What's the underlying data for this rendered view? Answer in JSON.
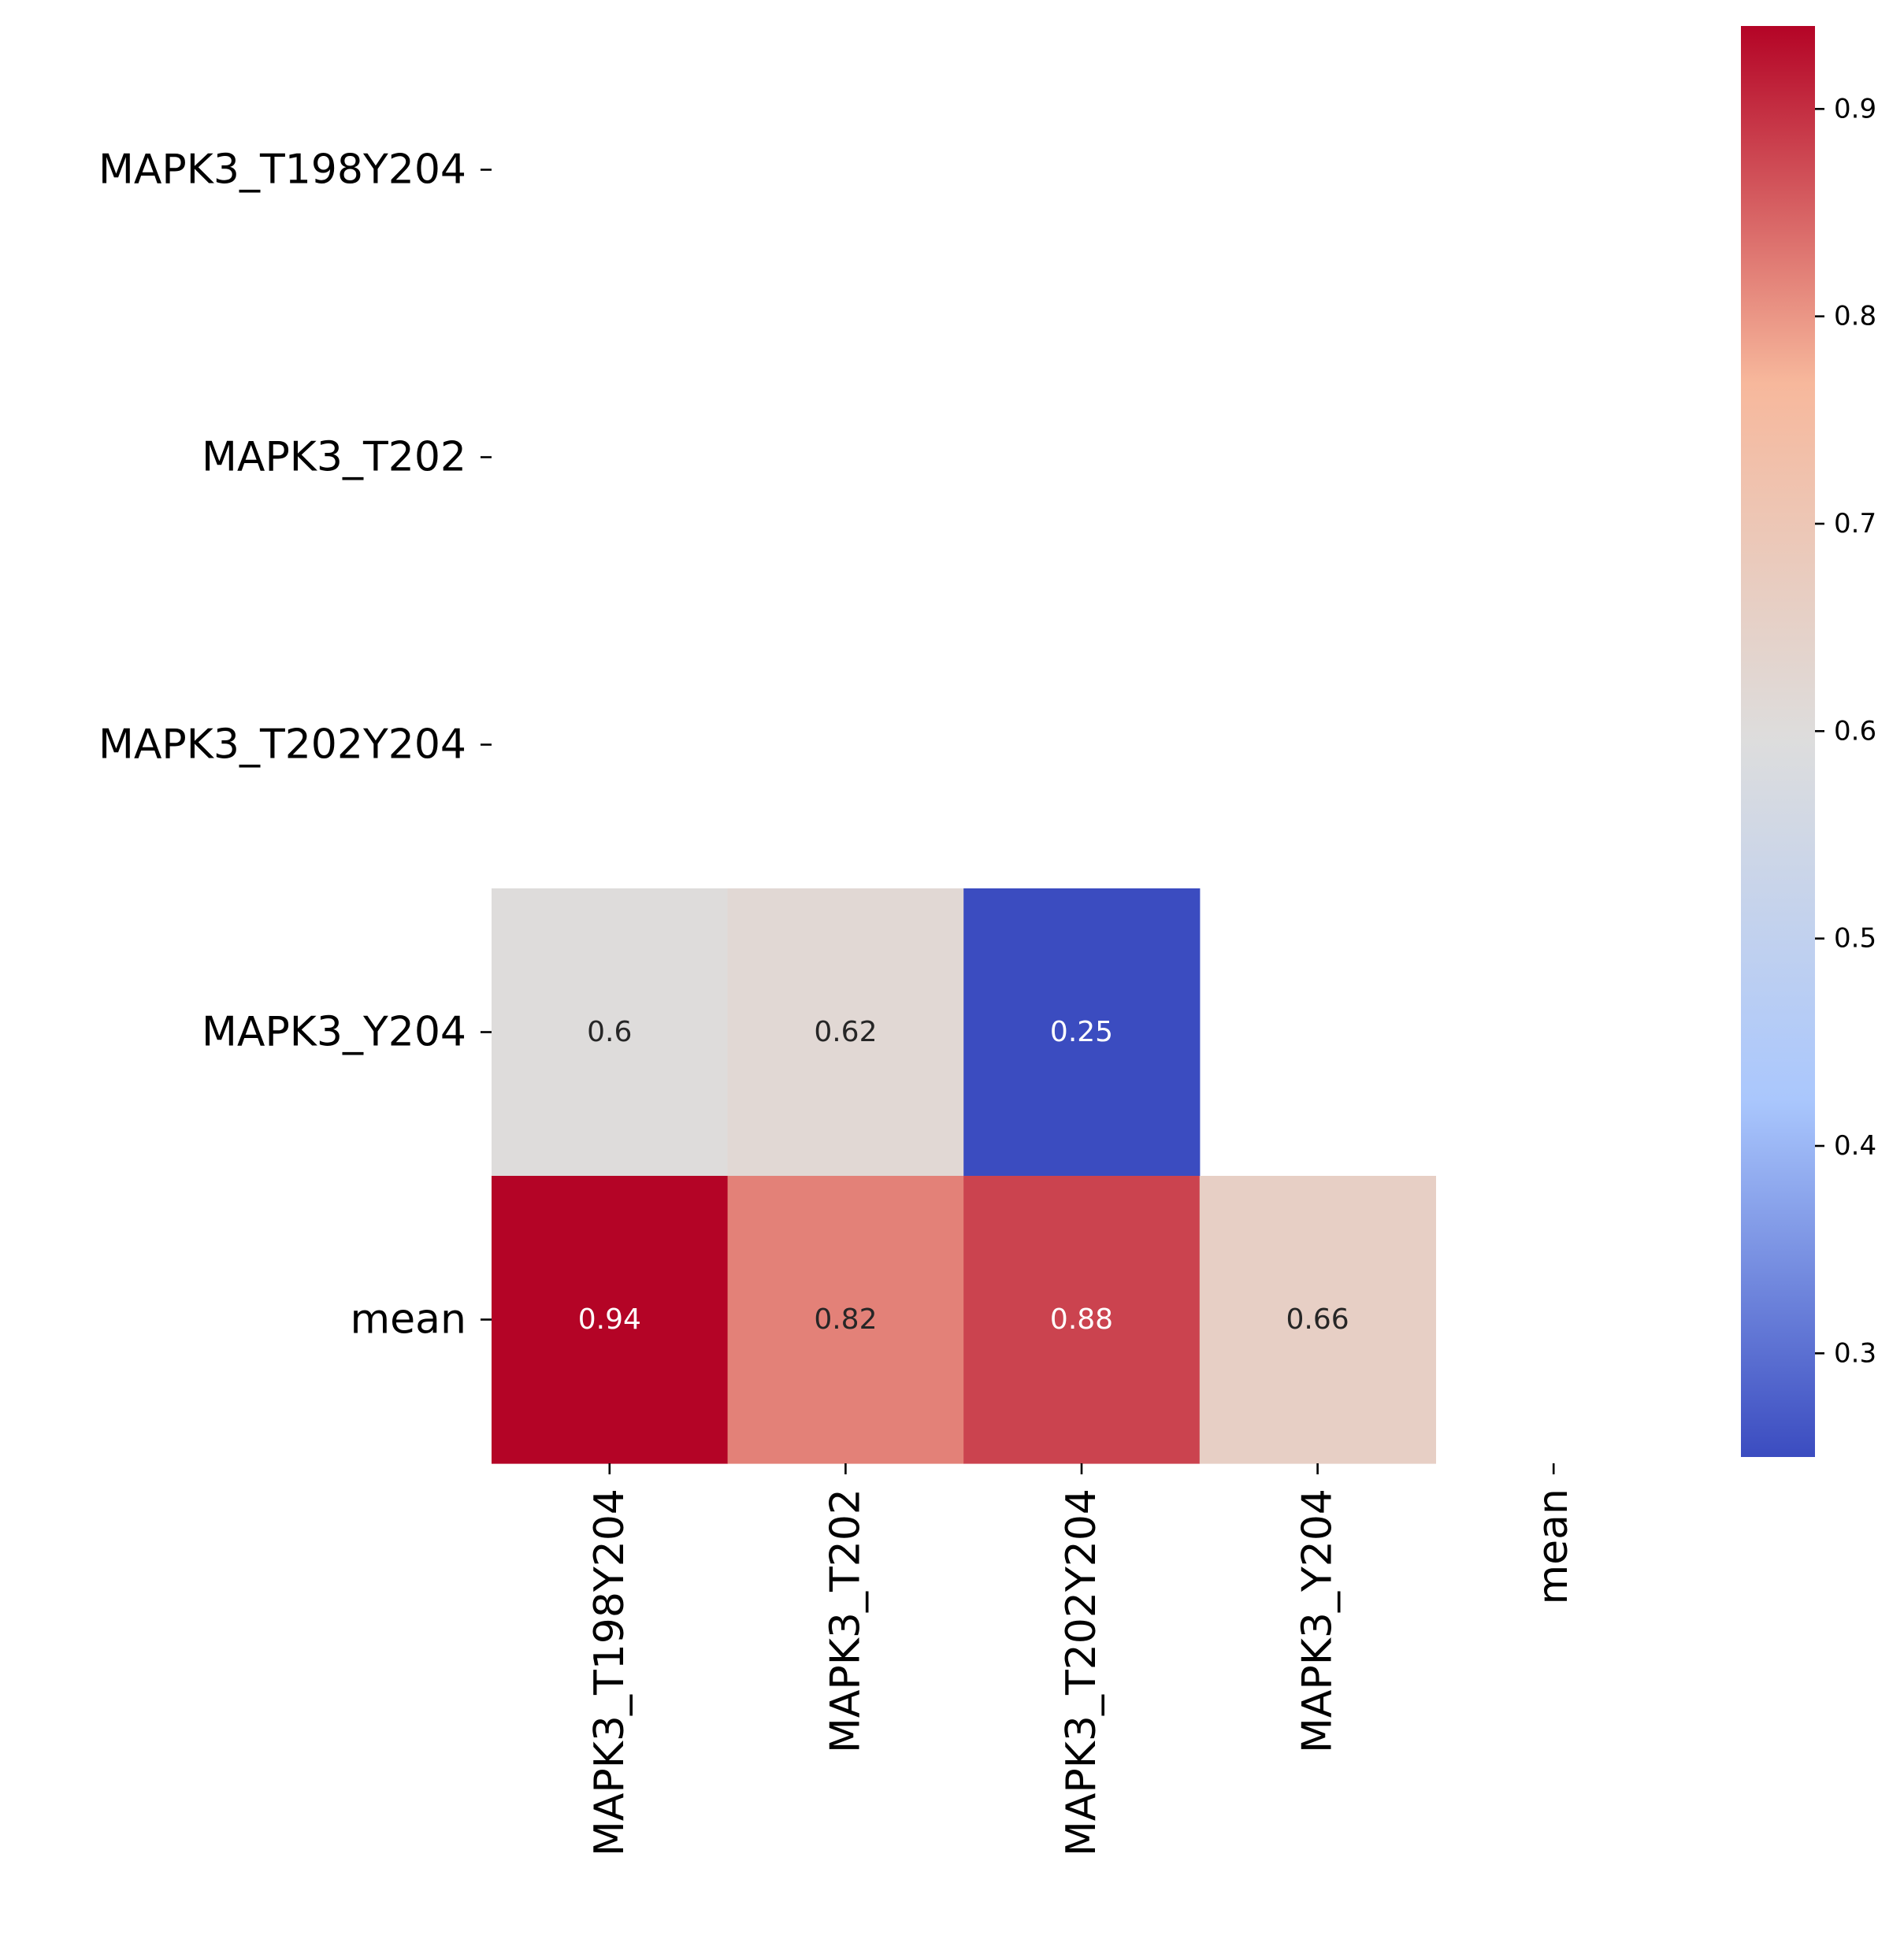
{
  "chart_data": {
    "type": "heatmap",
    "title": "",
    "xlabel": "",
    "ylabel": "",
    "rows": [
      "MAPK3_T198Y204",
      "MAPK3_T202",
      "MAPK3_T202Y204",
      "MAPK3_Y204",
      "mean"
    ],
    "columns": [
      "MAPK3_T198Y204",
      "MAPK3_T202",
      "MAPK3_T202Y204",
      "MAPK3_Y204",
      "mean"
    ],
    "values": [
      [
        null,
        null,
        null,
        null,
        null
      ],
      [
        null,
        null,
        null,
        null,
        null
      ],
      [
        null,
        null,
        null,
        null,
        null
      ],
      [
        0.6,
        0.62,
        0.25,
        null,
        null
      ],
      [
        0.94,
        0.82,
        0.88,
        0.66,
        null
      ]
    ],
    "annotations": [
      [
        null,
        null,
        null,
        null,
        null
      ],
      [
        null,
        null,
        null,
        null,
        null
      ],
      [
        null,
        null,
        null,
        null,
        null
      ],
      [
        "0.6",
        "0.62",
        "0.25",
        null,
        null
      ],
      [
        "0.94",
        "0.82",
        "0.88",
        "0.66",
        null
      ]
    ],
    "mask": "upper triangle including diagonal",
    "colormap": "coolwarm",
    "colormap_stops": [
      "#3b4cc0",
      "#aac7fd",
      "#dddddd",
      "#f7b89c",
      "#b40426"
    ],
    "colorbar": {
      "range": [
        0.25,
        0.94
      ],
      "ticks": [
        0.3,
        0.4,
        0.5,
        0.6,
        0.7,
        0.8,
        0.9
      ],
      "tick_labels": [
        "0.3",
        "0.4",
        "0.5",
        "0.6",
        "0.7",
        "0.8",
        "0.9"
      ]
    },
    "annotation_text_colors": {
      "dark": "#262626",
      "light": "#ffffff"
    }
  }
}
